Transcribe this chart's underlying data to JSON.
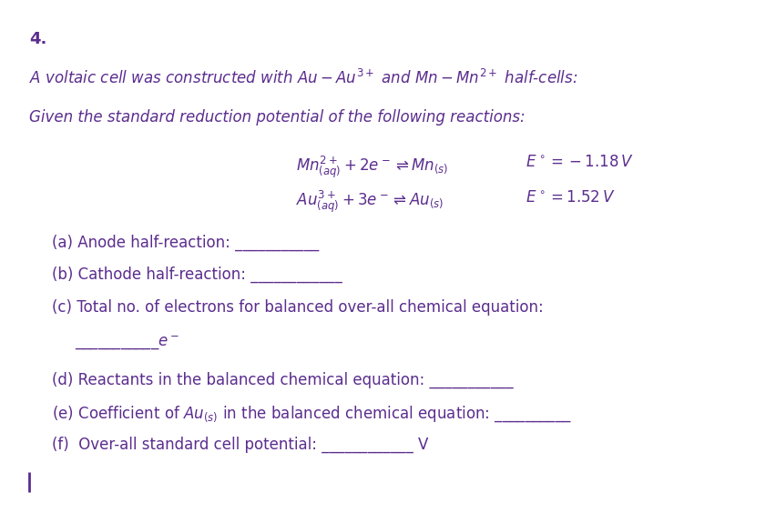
{
  "bg_color": "#ffffff",
  "text_color": "#5b2d8e",
  "figsize": [
    8.52,
    5.64
  ],
  "dpi": 100,
  "number": "4.",
  "line1": "A voltaic cell was constructed with $Au-Au^{3+}$ and $Mn-Mn^{2+}$ half-cells:",
  "line2": "Given the standard reduction potential of the following reactions:",
  "rxn1_left": "$Mn^{2+}_{(aq)} + 2e^- \\rightleftharpoons Mn_{(s)}$",
  "rxn1_right": "$E^\\circ = -1.18\\,V$",
  "rxn2_left": "$Au^{3+}_{(aq)} + 3e^- \\rightleftharpoons Au_{(s)}$",
  "rxn2_right": "$E^\\circ = 1.52\\,V$",
  "qa": "(a) Anode half-reaction: ___________",
  "qb": "(b) Cathode half-reaction: ____________",
  "qc": "(c) Total no. of electrons for balanced over-all chemical equation:",
  "qc2": "___________$e^-$",
  "qd": "(d) Reactants in the balanced chemical equation: ___________",
  "qe": "(e) Coefficient of $Au_{(s)}$ in the balanced chemical equation: __________",
  "qf": "(f)  Over-all standard cell potential: ____________ V"
}
